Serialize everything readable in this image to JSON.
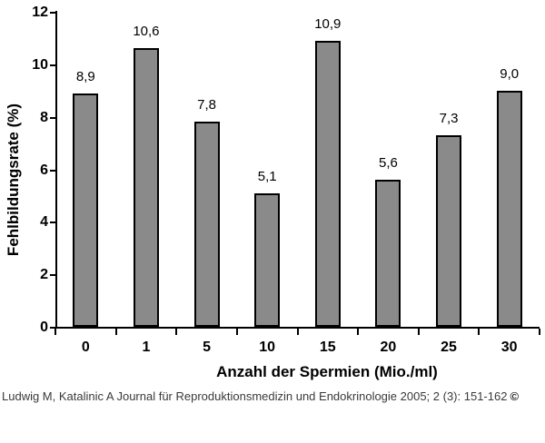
{
  "chart_data": {
    "type": "bar",
    "title": "",
    "categories": [
      "0",
      "1",
      "5",
      "10",
      "15",
      "20",
      "25",
      "30"
    ],
    "values": [
      8.9,
      10.6,
      7.8,
      5.1,
      10.9,
      5.6,
      7.3,
      9.0
    ],
    "value_labels": [
      "8,9",
      "10,6",
      "7,8",
      "5,1",
      "10,9",
      "5,6",
      "7,3",
      "9,0"
    ],
    "xlabel": "Anzahl der Spermien (Mio./ml)",
    "ylabel": "Fehlbildungsrate (%)",
    "ylim": [
      0,
      12
    ],
    "yticks": [
      0,
      2,
      4,
      6,
      8,
      10,
      12
    ],
    "grid": false,
    "legend_position": "none",
    "bar_color": "#8a8a8a",
    "bar_border_color": "#000000",
    "axis_color": "#000000"
  },
  "caption": {
    "text": "Ludwig M, Katalinic A Journal für Reproduktionsmedizin und Endokrinologie 2005; 2 (3): 151-162",
    "copyright_mark": "©"
  }
}
